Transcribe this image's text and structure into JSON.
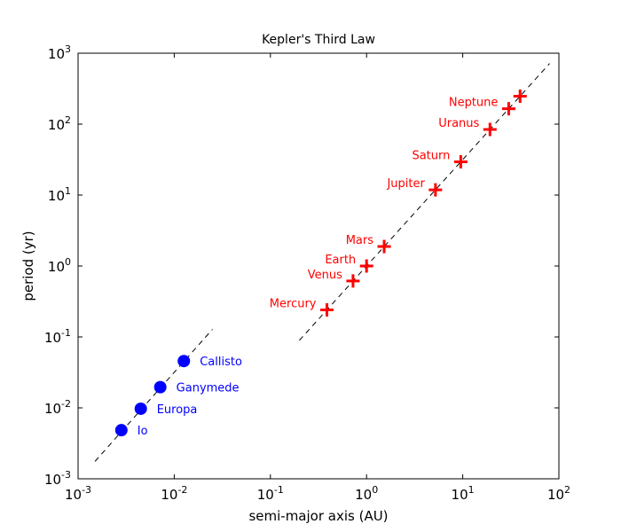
{
  "chart_data": {
    "type": "scatter",
    "title": "Kepler's Third Law",
    "xlabel": "semi-major axis (AU)",
    "ylabel": "period (yr)",
    "xscale": "log",
    "yscale": "log",
    "xlim": [
      0.001,
      100
    ],
    "ylim": [
      0.001,
      1000
    ],
    "grid": false,
    "xticks": [
      {
        "base": "10",
        "exp": "-3",
        "value": 0.001
      },
      {
        "base": "10",
        "exp": "-2",
        "value": 0.01
      },
      {
        "base": "10",
        "exp": "-1",
        "value": 0.1
      },
      {
        "base": "10",
        "exp": "0",
        "value": 1
      },
      {
        "base": "10",
        "exp": "1",
        "value": 10
      },
      {
        "base": "10",
        "exp": "2",
        "value": 100
      }
    ],
    "yticks": [
      {
        "base": "10",
        "exp": "-3",
        "value": 0.001
      },
      {
        "base": "10",
        "exp": "-2",
        "value": 0.01
      },
      {
        "base": "10",
        "exp": "-1",
        "value": 0.1
      },
      {
        "base": "10",
        "exp": "0",
        "value": 1
      },
      {
        "base": "10",
        "exp": "1",
        "value": 10
      },
      {
        "base": "10",
        "exp": "2",
        "value": 100
      },
      {
        "base": "10",
        "exp": "3",
        "value": 1000
      }
    ],
    "series": [
      {
        "color": "#ff0000",
        "marker": "plus",
        "label_side": "left",
        "points": [
          {
            "label": "Mercury",
            "x": 0.387,
            "y": 0.241
          },
          {
            "label": "Venus",
            "x": 0.723,
            "y": 0.615
          },
          {
            "label": "Earth",
            "x": 1.0,
            "y": 1.0
          },
          {
            "label": "Mars",
            "x": 1.524,
            "y": 1.881
          },
          {
            "label": "Jupiter",
            "x": 5.203,
            "y": 11.86
          },
          {
            "label": "Saturn",
            "x": 9.537,
            "y": 29.46
          },
          {
            "label": "Uranus",
            "x": 19.19,
            "y": 84.01
          },
          {
            "label": "Neptune",
            "x": 30.07,
            "y": 164.8
          },
          {
            "label": "",
            "x": 39.48,
            "y": 247.7
          }
        ],
        "fit_line": {
          "x": [
            0.2,
            80
          ],
          "y": [
            0.0894,
            715.5
          ]
        }
      },
      {
        "color": "#0000ff",
        "marker": "circle",
        "label_side": "right",
        "points": [
          {
            "label": "Io",
            "x": 0.00282,
            "y": 0.00485
          },
          {
            "label": "Europa",
            "x": 0.00449,
            "y": 0.00972
          },
          {
            "label": "Ganymede",
            "x": 0.00716,
            "y": 0.0196
          },
          {
            "label": "Callisto",
            "x": 0.01259,
            "y": 0.0457
          }
        ],
        "fit_line": {
          "x": [
            0.0015,
            0.025
          ],
          "y": [
            0.00176,
            0.128
          ]
        }
      }
    ]
  }
}
